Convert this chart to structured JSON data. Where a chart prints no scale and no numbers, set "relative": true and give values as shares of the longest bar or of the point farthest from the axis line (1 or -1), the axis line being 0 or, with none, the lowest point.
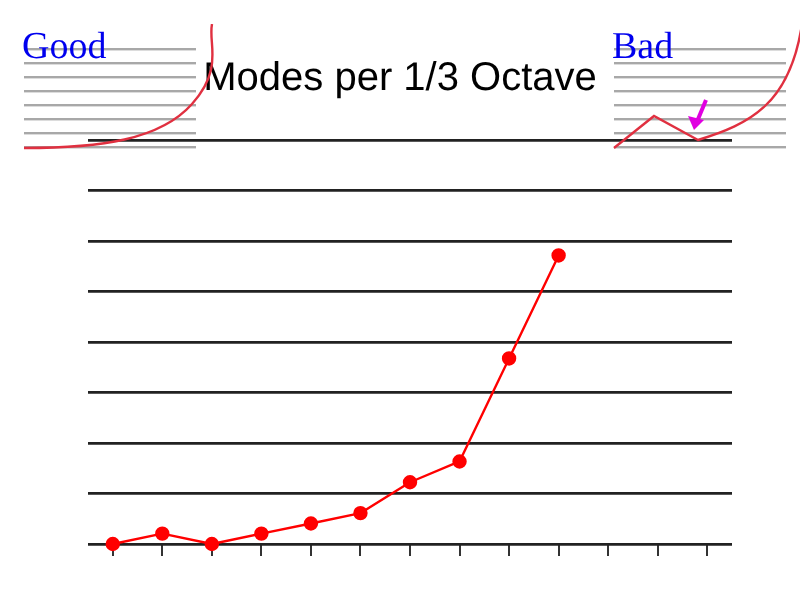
{
  "chart_data": {
    "type": "line",
    "title": "Modes per 1/3 Octave",
    "relative": true,
    "categories": [
      null,
      null,
      null,
      null,
      null,
      null,
      null,
      null,
      null,
      null,
      null,
      null,
      null
    ],
    "series": [
      {
        "color": "#ff0000",
        "values": [
          0,
          0.036,
          0,
          0.036,
          0.071,
          0.107,
          0.214,
          0.286,
          0.643,
          1,
          null,
          null,
          null
        ]
      }
    ],
    "marker": "circle",
    "grid": "y",
    "legend": false,
    "annotations": [
      "Good",
      "Bad"
    ]
  }
}
